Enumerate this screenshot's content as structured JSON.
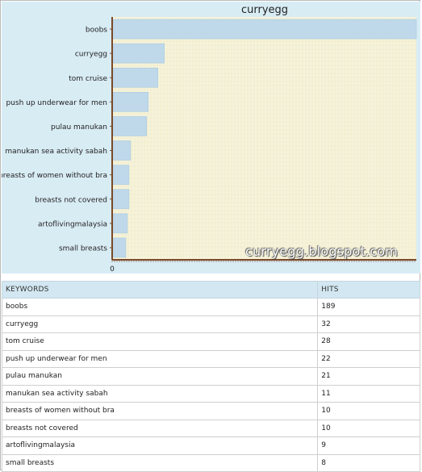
{
  "chart_data": {
    "type": "bar",
    "orientation": "horizontal",
    "title": "curryegg",
    "categories": [
      "boobs",
      "curryegg",
      "tom cruise",
      "push up underwear for men",
      "pulau manukan",
      "manukan sea activity sabah",
      "breasts of women without bra",
      "breasts not covered",
      "artoflivingmalaysia",
      "small breasts"
    ],
    "values": [
      189,
      32,
      28,
      22,
      21,
      11,
      10,
      10,
      9,
      8
    ],
    "x_tick_labels": [
      "0"
    ],
    "xlim": [
      0,
      189
    ],
    "grid": true,
    "legend": "none",
    "colors": {
      "bar": "#bfd9ea",
      "bar_edge": "#a9c9de",
      "plot_bg": "#f4f4dc",
      "grid": "#f0d8a8",
      "axis": "#7a4a2a"
    }
  },
  "watermark": "curryegg.blogspot.com",
  "table": {
    "headers": [
      "KEYWORDS",
      "HITS"
    ],
    "rows": [
      [
        "boobs",
        "189"
      ],
      [
        "curryegg",
        "32"
      ],
      [
        "tom cruise",
        "28"
      ],
      [
        "push up underwear for men",
        "22"
      ],
      [
        "pulau manukan",
        "21"
      ],
      [
        "manukan sea activity sabah",
        "11"
      ],
      [
        "breasts of women without bra",
        "10"
      ],
      [
        "breasts not covered",
        "10"
      ],
      [
        "artoflivingmalaysia",
        "9"
      ],
      [
        "small breasts",
        "8"
      ]
    ]
  }
}
